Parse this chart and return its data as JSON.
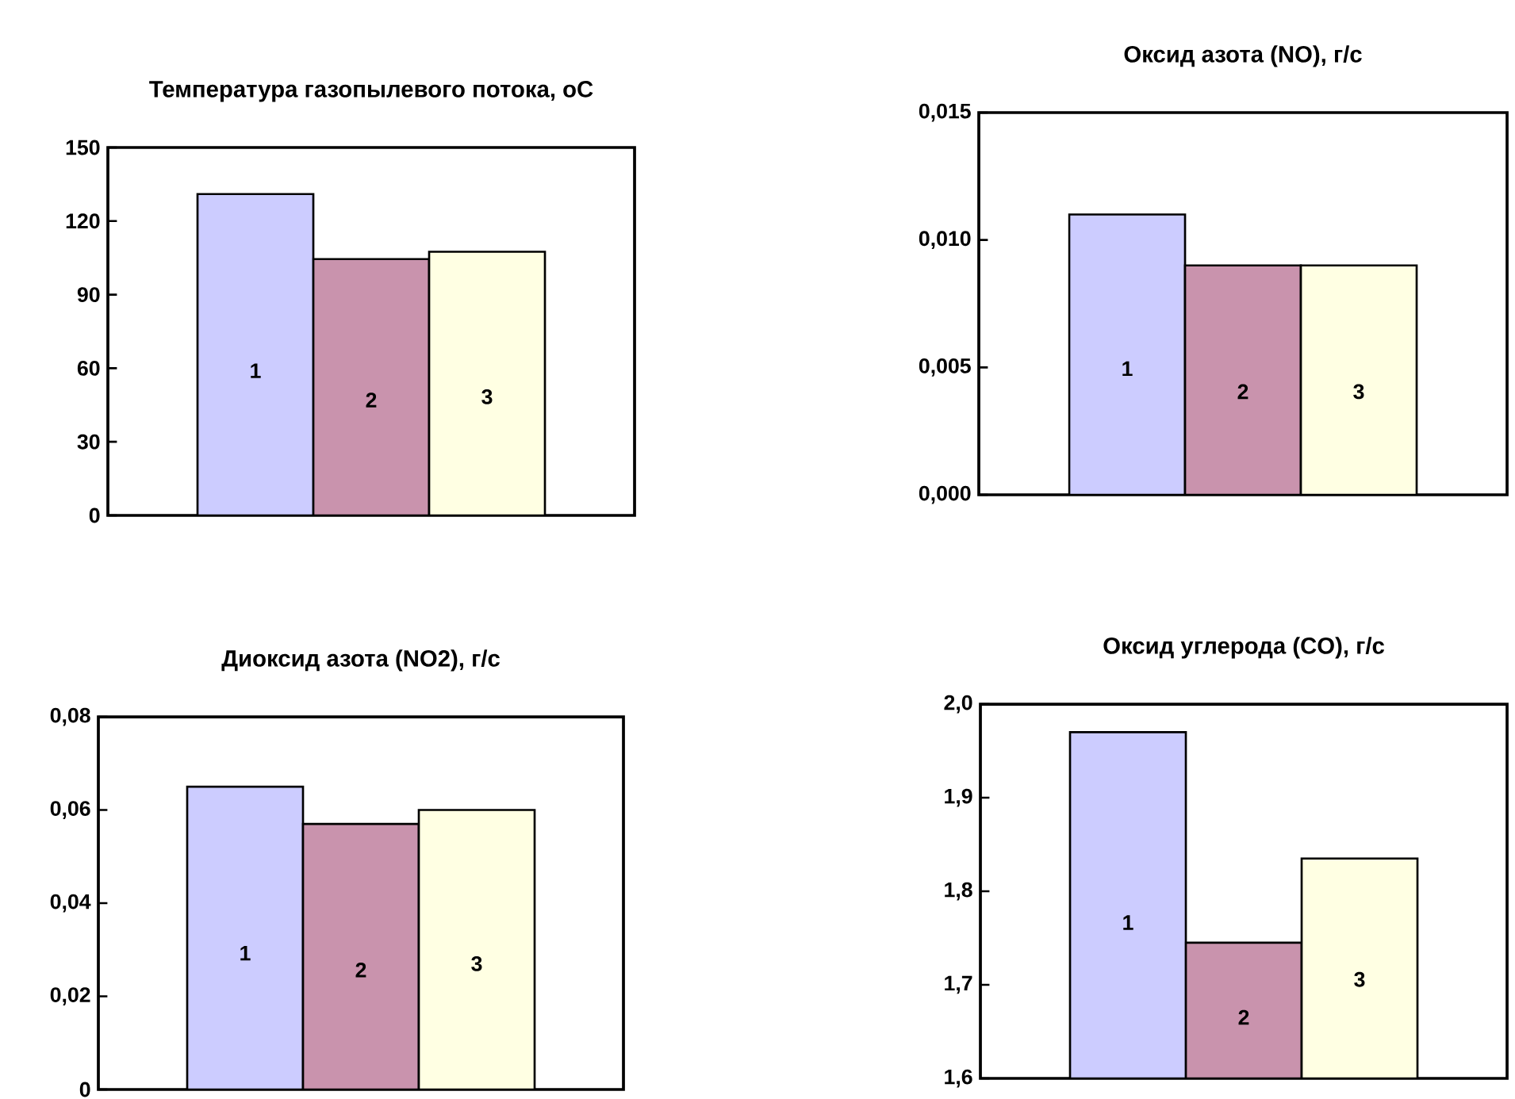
{
  "chart_data": [
    {
      "type": "bar",
      "title": "Температура газопылевого потока, оС",
      "categories": [
        "1",
        "2",
        "3"
      ],
      "values": [
        131,
        104.5,
        107.5
      ],
      "colors": [
        "#ccccff",
        "#c993ad",
        "#ffffe3"
      ],
      "ylim": [
        0,
        150
      ],
      "yticks": [
        0,
        30,
        60,
        90,
        120,
        150
      ]
    },
    {
      "type": "bar",
      "title": "Оксид азота (NO), г/с",
      "categories": [
        "1",
        "2",
        "3"
      ],
      "values": [
        0.011,
        0.009,
        0.009
      ],
      "colors": [
        "#ccccff",
        "#c993ad",
        "#ffffe3"
      ],
      "ylim": [
        0,
        0.015
      ],
      "yticks": [
        {
          "value": 0,
          "label": "0,000"
        },
        {
          "value": 0.005,
          "label": "0,005"
        },
        {
          "value": 0.01,
          "label": "0,010"
        },
        {
          "value": 0.015,
          "label": "0,015"
        }
      ]
    },
    {
      "type": "bar",
      "title": "Диоксид азота (NO2), г/с",
      "categories": [
        "1",
        "2",
        "3"
      ],
      "values": [
        0.065,
        0.057,
        0.06
      ],
      "colors": [
        "#ccccff",
        "#c993ad",
        "#ffffe3"
      ],
      "ylim": [
        0,
        0.08
      ],
      "yticks": [
        0,
        {
          "value": 0.02,
          "label": "0,02"
        },
        {
          "value": 0.04,
          "label": "0,04"
        },
        {
          "value": 0.06,
          "label": "0,06"
        },
        {
          "value": 0.08,
          "label": "0,08"
        }
      ]
    },
    {
      "type": "bar",
      "title": "Оксид углерода (CO), г/с",
      "categories": [
        "1",
        "2",
        "3"
      ],
      "values": [
        1.97,
        1.745,
        1.835
      ],
      "colors": [
        "#ccccff",
        "#c993ad",
        "#ffffe3"
      ],
      "ylim": [
        1.6,
        2.0
      ],
      "yticks": [
        {
          "value": 1.6,
          "label": "1,6"
        },
        {
          "value": 1.7,
          "label": "1,7"
        },
        {
          "value": 1.8,
          "label": "1,8"
        },
        {
          "value": 1.9,
          "label": "1,9"
        },
        {
          "value": 2.0,
          "label": "2,0"
        }
      ]
    }
  ]
}
